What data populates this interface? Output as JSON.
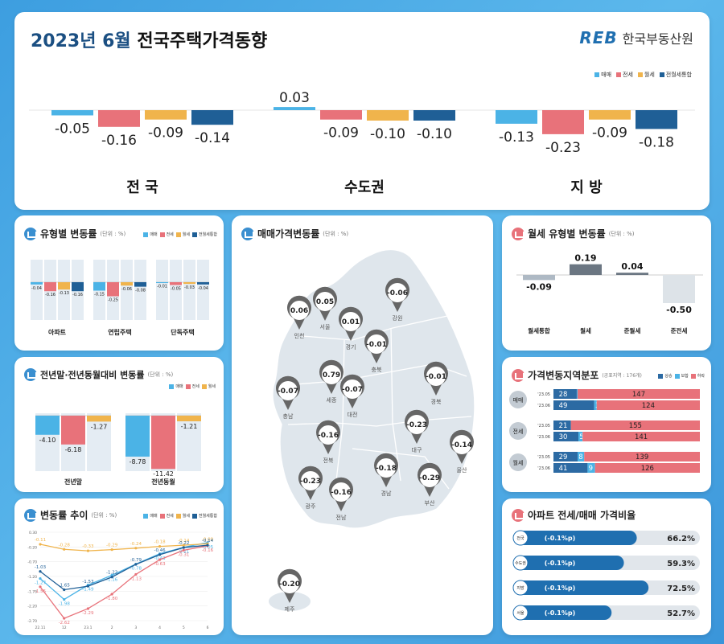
{
  "header": {
    "title_year": "2023년 6월",
    "title_rest": "전국주택가격동향",
    "logo_text": "REB",
    "logo_org": "한국부동산원"
  },
  "colors": {
    "sale": "#4bb3e6",
    "jeonse": "#e8727a",
    "wolse": "#f0b44c",
    "combined": "#1f5f96"
  },
  "legend": [
    "매매",
    "전세",
    "월세",
    "전월세통합"
  ],
  "chart_data": [
    {
      "type": "bar",
      "name": "top",
      "categories": [
        "전 국",
        "수도권",
        "지 방"
      ],
      "series": [
        {
          "name": "매매",
          "values": [
            -0.05,
            0.03,
            -0.13
          ]
        },
        {
          "name": "전세",
          "values": [
            -0.16,
            -0.09,
            -0.23
          ]
        },
        {
          "name": "월세",
          "values": [
            -0.09,
            -0.1,
            -0.09
          ]
        },
        {
          "name": "전월세통합",
          "values": [
            -0.14,
            -0.1,
            -0.18
          ]
        }
      ]
    },
    {
      "type": "bar",
      "title": "유형별 변동률",
      "unit": "(단위 : %)",
      "categories": [
        "아파트",
        "연립주택",
        "단독주택"
      ],
      "series": [
        {
          "name": "매매",
          "values": [
            -0.04,
            -0.15,
            -0.01
          ]
        },
        {
          "name": "전세",
          "values": [
            -0.16,
            -0.25,
            -0.05
          ]
        },
        {
          "name": "월세",
          "values": [
            -0.13,
            -0.06,
            -0.03
          ]
        },
        {
          "name": "전월세통합",
          "values": [
            -0.16,
            -0.08,
            -0.04
          ]
        }
      ]
    },
    {
      "type": "bar",
      "title": "전년말·전년동월대비 변동률",
      "unit": "(단위 : %)",
      "categories": [
        "전년말",
        "전년동월"
      ],
      "series": [
        {
          "name": "매매",
          "values": [
            -4.1,
            -8.78
          ]
        },
        {
          "name": "전세",
          "values": [
            -6.18,
            -11.42
          ]
        },
        {
          "name": "월세",
          "values": [
            -1.27,
            -1.21
          ]
        }
      ]
    },
    {
      "type": "line",
      "title": "변동률 추이",
      "unit": "(단위 : %)",
      "x": [
        "22.11",
        "12",
        "23.1",
        "2",
        "3",
        "4",
        "5",
        "6"
      ],
      "ylim": [
        -2.7,
        0.3
      ],
      "yticks": [
        "0.30",
        "-0.20",
        "-0.70",
        "-1.20",
        "-1.70",
        "-2.20",
        "-2.70"
      ],
      "series": [
        {
          "name": "매매",
          "values": [
            -1.27,
            -1.98,
            -1.49,
            -1.16,
            -0.78,
            -0.43,
            -0.21,
            -0.05
          ]
        },
        {
          "name": "전세",
          "values": [
            -1.55,
            -2.62,
            -2.29,
            -1.8,
            -1.13,
            -0.63,
            -0.31,
            -0.16
          ]
        },
        {
          "name": "월세",
          "values": [
            -0.11,
            -0.28,
            -0.33,
            -0.29,
            -0.24,
            -0.18,
            -0.14,
            -0.09
          ]
        },
        {
          "name": "전월세통합",
          "values": [
            -1.03,
            -1.65,
            -1.53,
            -1.22,
            -0.79,
            -0.46,
            -0.22,
            -0.14
          ]
        }
      ]
    },
    {
      "type": "bar",
      "title": "월세 유형별 변동률",
      "unit": "(단위 : %)",
      "categories": [
        "월세통합",
        "월세",
        "준월세",
        "준전세"
      ],
      "values": [
        -0.09,
        0.19,
        0.04,
        -0.5
      ]
    },
    {
      "type": "bar",
      "title": "가격변동지역분포",
      "unit": "(공표지역 : 176개)",
      "legend": [
        "상승",
        "보합",
        "하락"
      ],
      "groups": [
        {
          "name": "매매",
          "rows": [
            {
              "period": "'23.05",
              "values": [
                28,
                1,
                147
              ]
            },
            {
              "period": "'23.06",
              "values": [
                49,
                3,
                124
              ]
            }
          ]
        },
        {
          "name": "전세",
          "rows": [
            {
              "period": "'23.05",
              "values": [
                21,
                0,
                155
              ]
            },
            {
              "period": "'23.06",
              "values": [
                30,
                5,
                141
              ]
            }
          ]
        },
        {
          "name": "월세",
          "rows": [
            {
              "period": "'23.05",
              "values": [
                29,
                8,
                139
              ]
            },
            {
              "period": "'23.06",
              "values": [
                41,
                9,
                126
              ]
            }
          ]
        }
      ]
    },
    {
      "type": "bar",
      "title": "아파트 전세/매매 가격비율",
      "categories": [
        "전국",
        "수도권",
        "지방",
        "서울"
      ],
      "values": [
        66.2,
        59.3,
        72.5,
        52.7
      ],
      "value_labels": [
        "66.2%",
        "59.3%",
        "72.5%",
        "52.7%"
      ],
      "change_labels": [
        "(-0.1%p)",
        "(-0.1%p)",
        "(-0.1%p)",
        "(-0.1%p)"
      ]
    }
  ],
  "map": {
    "title": "매매가격변동률",
    "unit": "(단위 : %)",
    "regions": [
      {
        "name": "인천",
        "value": "0.06"
      },
      {
        "name": "서울",
        "value": "0.05"
      },
      {
        "name": "경기",
        "value": "0.01"
      },
      {
        "name": "강원",
        "value": "-0.06"
      },
      {
        "name": "충북",
        "value": "-0.01"
      },
      {
        "name": "세종",
        "value": "0.79"
      },
      {
        "name": "충남",
        "value": "-0.07"
      },
      {
        "name": "대전",
        "value": "-0.07"
      },
      {
        "name": "경북",
        "value": "-0.01"
      },
      {
        "name": "전북",
        "value": "-0.16"
      },
      {
        "name": "대구",
        "value": "-0.23"
      },
      {
        "name": "울산",
        "value": "-0.14"
      },
      {
        "name": "광주",
        "value": "-0.23"
      },
      {
        "name": "경남",
        "value": "-0.18"
      },
      {
        "name": "부산",
        "value": "-0.29"
      },
      {
        "name": "전남",
        "value": "-0.16"
      },
      {
        "name": "제주",
        "value": "-0.20"
      }
    ]
  }
}
